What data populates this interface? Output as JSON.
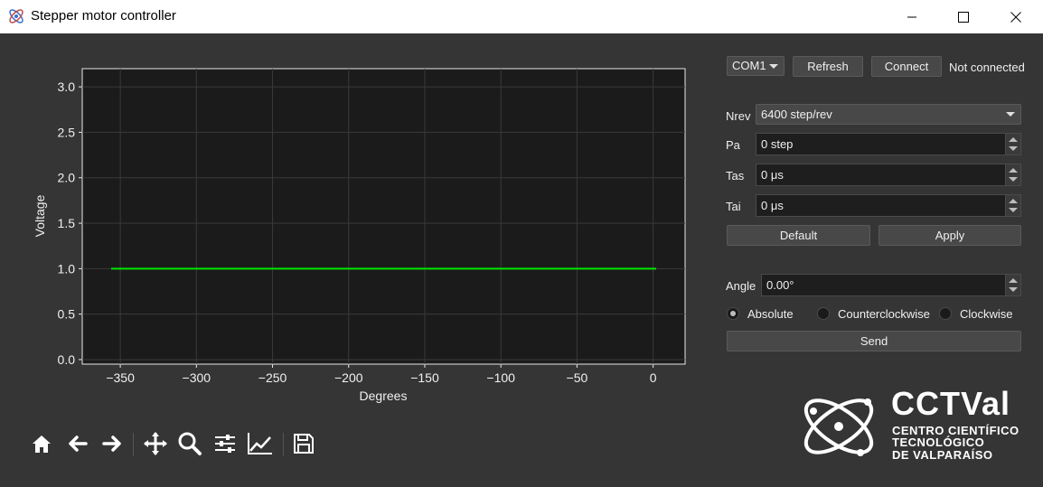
{
  "window": {
    "title": "Stepper motor controller",
    "icon": "atom-app-icon",
    "controls": [
      "minimize-icon",
      "maximize-icon",
      "close-icon"
    ]
  },
  "connection": {
    "port": "COM1",
    "refresh_label": "Refresh",
    "connect_label": "Connect",
    "status": "Not connected"
  },
  "settings": {
    "nrev_label": "Nrev",
    "nrev_value": "6400 step/rev",
    "pa_label": "Pa",
    "pa_value": "0 step",
    "tas_label": "Tas",
    "tas_value": "0 μs",
    "tai_label": "Tai",
    "tai_value": "0 μs",
    "default_label": "Default",
    "apply_label": "Apply"
  },
  "motion": {
    "angle_label": "Angle",
    "angle_value": "0.00°",
    "modes": [
      {
        "label": "Absolute",
        "selected": true
      },
      {
        "label": "Counterclockwise",
        "selected": false
      },
      {
        "label": "Clockwise",
        "selected": false
      }
    ],
    "send_label": "Send"
  },
  "toolbar": {
    "icons": [
      "home-icon",
      "back-icon",
      "forward-icon",
      "pan-icon",
      "zoom-icon",
      "configure-subplots-icon",
      "edit-axis-icon",
      "save-icon"
    ]
  },
  "logo": {
    "name": "CCTVal",
    "line1": "CENTRO CIENTÍFICO",
    "line2": "TECNOLÓGICO",
    "line3": "DE VALPARAÍSO"
  },
  "chart_data": {
    "type": "line",
    "xlabel": "Degrees",
    "ylabel": "Voltage",
    "xlim": [
      -375,
      21
    ],
    "ylim": [
      -0.05,
      3.2
    ],
    "xticks": [
      -350,
      -300,
      -250,
      -200,
      -150,
      -100,
      -50,
      0
    ],
    "xtick_labels": [
      "−350",
      "−300",
      "−250",
      "−200",
      "−150",
      "−100",
      "−50",
      "0"
    ],
    "yticks": [
      0.0,
      0.5,
      1.0,
      1.5,
      2.0,
      2.5,
      3.0
    ],
    "ytick_labels": [
      "0.0",
      "0.5",
      "1.0",
      "1.5",
      "2.0",
      "2.5",
      "3.0"
    ],
    "grid": true,
    "series": [
      {
        "x": [
          -356,
          2
        ],
        "y": [
          1.0,
          1.0
        ],
        "color": "#00e600"
      }
    ]
  }
}
